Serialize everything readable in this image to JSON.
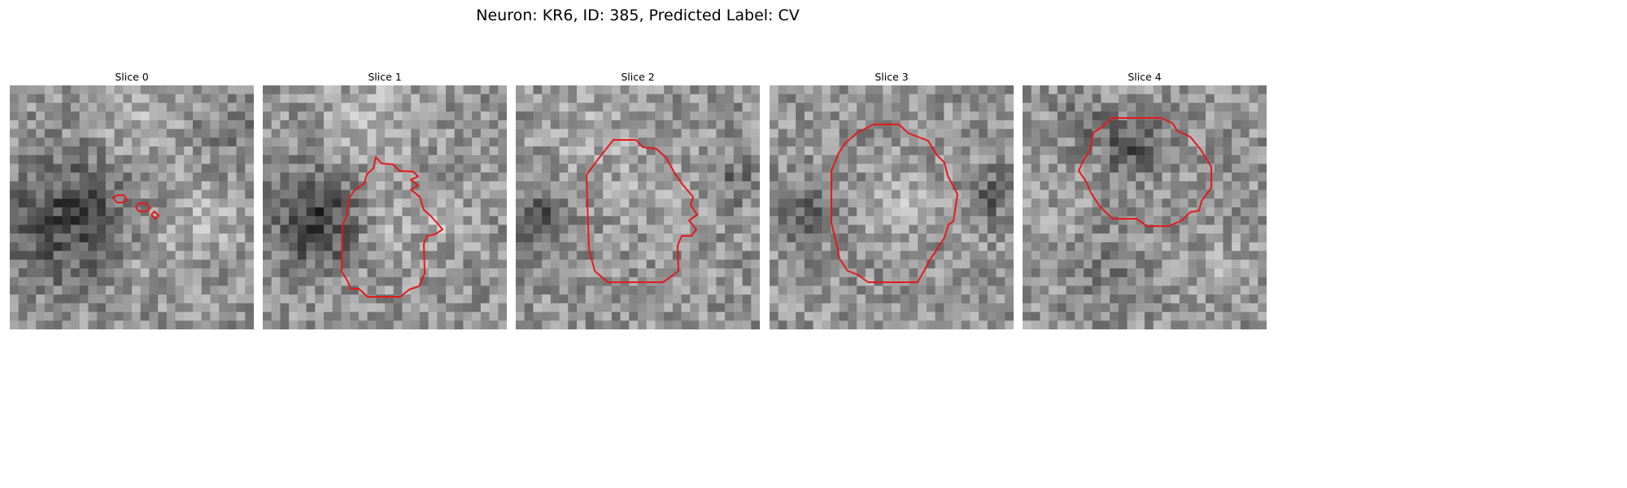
{
  "figure": {
    "title": "Neuron: KR6, ID: 385, Predicted Label: CV",
    "contour_color": "#e31a1c",
    "colormap": "gray"
  },
  "panels": [
    {
      "title": "Slice 0",
      "contour_islands": [
        [
          [
            139,
            243
          ],
          [
            144,
            240
          ],
          [
            152,
            240
          ],
          [
            156,
            245
          ],
          [
            152,
            249
          ],
          [
            144,
            249
          ]
        ],
        [
          [
            167,
            255
          ],
          [
            171,
            250
          ],
          [
            179,
            250
          ],
          [
            185,
            256
          ],
          [
            180,
            260
          ],
          [
            171,
            260
          ]
        ],
        [
          [
            186,
            264
          ],
          [
            190,
            260
          ],
          [
            195,
            265
          ],
          [
            191,
            269
          ]
        ]
      ]
    },
    {
      "title": "Slice 1",
      "contour_islands": [
        [
          [
            462,
            193
          ],
          [
            469,
            201
          ],
          [
            483,
            202
          ],
          [
            491,
            210
          ],
          [
            508,
            211
          ],
          [
            514,
            217
          ],
          [
            505,
            221
          ],
          [
            514,
            228
          ],
          [
            505,
            233
          ],
          [
            516,
            242
          ],
          [
            521,
            258
          ],
          [
            530,
            266
          ],
          [
            544,
            282
          ],
          [
            535,
            288
          ],
          [
            525,
            290
          ],
          [
            521,
            300
          ],
          [
            522,
            336
          ],
          [
            515,
            352
          ],
          [
            503,
            356
          ],
          [
            492,
            365
          ],
          [
            452,
            365
          ],
          [
            441,
            355
          ],
          [
            431,
            355
          ],
          [
            427,
            345
          ],
          [
            420,
            334
          ],
          [
            421,
            276
          ],
          [
            426,
            266
          ],
          [
            429,
            244
          ],
          [
            435,
            235
          ],
          [
            448,
            225
          ],
          [
            451,
            214
          ],
          [
            459,
            207
          ]
        ]
      ]
    },
    {
      "title": "Slice 2",
      "contour_islands": [
        [
          [
            754,
            172
          ],
          [
            782,
            172
          ],
          [
            790,
            181
          ],
          [
            807,
            183
          ],
          [
            819,
            194
          ],
          [
            830,
            214
          ],
          [
            840,
            228
          ],
          [
            852,
            242
          ],
          [
            849,
            252
          ],
          [
            857,
            264
          ],
          [
            847,
            271
          ],
          [
            856,
            282
          ],
          [
            850,
            290
          ],
          [
            838,
            290
          ],
          [
            833,
            302
          ],
          [
            834,
            333
          ],
          [
            825,
            340
          ],
          [
            815,
            347
          ],
          [
            747,
            347
          ],
          [
            731,
            333
          ],
          [
            729,
            325
          ],
          [
            724,
            306
          ],
          [
            722,
            250
          ],
          [
            721,
            215
          ],
          [
            735,
            196
          ]
        ]
      ]
    },
    {
      "title": "Slice 3",
      "contour_islands": [
        [
          [
            1074,
            153
          ],
          [
            1105,
            153
          ],
          [
            1117,
            164
          ],
          [
            1141,
            173
          ],
          [
            1151,
            190
          ],
          [
            1161,
            200
          ],
          [
            1165,
            216
          ],
          [
            1177,
            239
          ],
          [
            1172,
            272
          ],
          [
            1166,
            276
          ],
          [
            1161,
            292
          ],
          [
            1151,
            308
          ],
          [
            1144,
            318
          ],
          [
            1136,
            333
          ],
          [
            1128,
            347
          ],
          [
            1067,
            347
          ],
          [
            1055,
            338
          ],
          [
            1042,
            333
          ],
          [
            1032,
            318
          ],
          [
            1029,
            303
          ],
          [
            1022,
            274
          ],
          [
            1022,
            210
          ],
          [
            1031,
            188
          ],
          [
            1039,
            176
          ],
          [
            1054,
            163
          ]
        ]
      ]
    },
    {
      "title": "Slice 4",
      "contour_islands": [
        [
          [
            1367,
            145
          ],
          [
            1428,
            145
          ],
          [
            1442,
            152
          ],
          [
            1447,
            161
          ],
          [
            1463,
            168
          ],
          [
            1476,
            184
          ],
          [
            1489,
            205
          ],
          [
            1489,
            231
          ],
          [
            1477,
            247
          ],
          [
            1474,
            259
          ],
          [
            1463,
            261
          ],
          [
            1453,
            271
          ],
          [
            1437,
            278
          ],
          [
            1410,
            278
          ],
          [
            1397,
            269
          ],
          [
            1368,
            269
          ],
          [
            1352,
            254
          ],
          [
            1341,
            237
          ],
          [
            1335,
            223
          ],
          [
            1326,
            210
          ],
          [
            1332,
            197
          ],
          [
            1340,
            184
          ],
          [
            1344,
            163
          ],
          [
            1355,
            156
          ]
        ]
      ]
    }
  ]
}
